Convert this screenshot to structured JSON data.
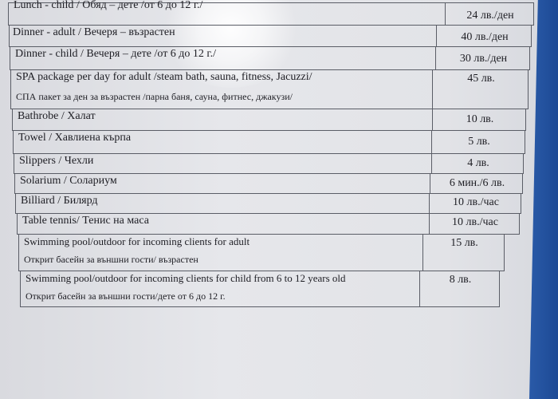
{
  "price_list": {
    "rows": [
      {
        "name": "Lunch - child / Обяд – дете /от 6 до 12 г./",
        "price": "24 лв./ден"
      },
      {
        "name": "Dinner - adult / Вечеря – възрастен",
        "price": "40 лв./ден"
      },
      {
        "name": "Dinner - child / Вечеря – дете /от 6 до 12 г./",
        "price": "30 лв./ден"
      },
      {
        "name": "SPA package per day for adult /steam bath, sauna, fitness, Jacuzzi/",
        "name2": "СПА пакет за ден за  възрастен /парна баня, сауна, фитнес, джакузи/",
        "price": "45 лв."
      },
      {
        "name": "Bathrobe / Халат",
        "price": "10 лв."
      },
      {
        "name": "Towel / Хавлиена кърпа",
        "price": "5 лв."
      },
      {
        "name": "Slippers / Чехли",
        "price": "4 лв."
      },
      {
        "name": "Solarium / Солариум",
        "price": "6 мин./6 лв."
      },
      {
        "name": "Billiard / Билярд",
        "price": "10 лв./час"
      },
      {
        "name": "Table tennis/ Тенис на маса",
        "price": "10 лв./час"
      },
      {
        "name": "Swimming pool/outdoor for incoming clients for adult",
        "name2": "Открит басейн за външни гости/ възрастен",
        "price": "15 лв."
      },
      {
        "name": "Swimming pool/outdoor for incoming clients for child  from 6 to 12 years old",
        "name2": "Открит басейн за външни гости/дете от 6 до 12 г.",
        "price": "8 лв."
      }
    ]
  }
}
